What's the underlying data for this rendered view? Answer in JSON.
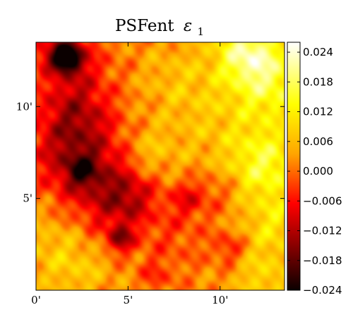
{
  "chart_data": {
    "type": "heatmap",
    "title": "PSFent",
    "title_symbol": "ε",
    "title_subscript": "1",
    "colormap": "hot",
    "colormap_stops": [
      "#0b0000",
      "#ff0000",
      "#ffa500",
      "#ffff00",
      "#ffffff"
    ],
    "xlim": [
      0,
      13.5
    ],
    "ylim": [
      0,
      13.5
    ],
    "x_ticks": [
      {
        "value": 0,
        "label": "0'"
      },
      {
        "value": 5,
        "label": "5'"
      },
      {
        "value": 10,
        "label": "10'"
      }
    ],
    "y_ticks": [
      {
        "value": 5,
        "label": "5'"
      },
      {
        "value": 10,
        "label": "10'"
      }
    ],
    "colorbar": {
      "min": -0.024,
      "max": 0.026,
      "ticks": [
        {
          "value": 0.024,
          "label": "0.024"
        },
        {
          "value": 0.018,
          "label": "0.018"
        },
        {
          "value": 0.012,
          "label": "0.012"
        },
        {
          "value": 0.006,
          "label": "0.006"
        },
        {
          "value": 0.0,
          "label": "0.000"
        },
        {
          "value": -0.006,
          "label": "−0.006"
        },
        {
          "value": -0.012,
          "label": "−0.012"
        },
        {
          "value": -0.018,
          "label": "−0.018"
        },
        {
          "value": -0.024,
          "label": "−0.024"
        }
      ]
    },
    "base_value": 0.002,
    "features": [
      {
        "x": 1.7,
        "y": 12.7,
        "sigma": 0.55,
        "value": -0.03
      },
      {
        "x": 2.0,
        "y": 12.2,
        "sigma": 1.5,
        "value": -0.008
      },
      {
        "x": 2.2,
        "y": 9.5,
        "sigma": 1.4,
        "value": -0.01
      },
      {
        "x": 1.5,
        "y": 7.5,
        "sigma": 1.6,
        "value": -0.008
      },
      {
        "x": 2.5,
        "y": 6.5,
        "sigma": 0.6,
        "value": -0.012
      },
      {
        "x": 3.5,
        "y": 6.3,
        "sigma": 1.8,
        "value": -0.008
      },
      {
        "x": 5.0,
        "y": 5.0,
        "sigma": 1.0,
        "value": -0.008
      },
      {
        "x": 4.6,
        "y": 2.8,
        "sigma": 0.5,
        "value": -0.014
      },
      {
        "x": 3.8,
        "y": 4.5,
        "sigma": 1.6,
        "value": -0.005
      },
      {
        "x": 8.3,
        "y": 5.0,
        "sigma": 0.7,
        "value": -0.008
      },
      {
        "x": 7.5,
        "y": 3.0,
        "sigma": 1.5,
        "value": -0.004
      },
      {
        "x": 10.5,
        "y": 2.3,
        "sigma": 0.6,
        "value": -0.007
      },
      {
        "x": 10.0,
        "y": 5.5,
        "sigma": 0.8,
        "value": -0.004
      },
      {
        "x": 6.5,
        "y": 0.8,
        "sigma": 0.6,
        "value": -0.005
      },
      {
        "x": 1.0,
        "y": 2.5,
        "sigma": 1.5,
        "value": 0.005
      },
      {
        "x": 2.5,
        "y": 1.0,
        "sigma": 1.2,
        "value": 0.004
      },
      {
        "x": 11.5,
        "y": 13.0,
        "sigma": 1.2,
        "value": 0.016
      },
      {
        "x": 12.8,
        "y": 11.2,
        "sigma": 1.5,
        "value": 0.012
      },
      {
        "x": 12.5,
        "y": 6.8,
        "sigma": 1.4,
        "value": 0.013
      },
      {
        "x": 13.0,
        "y": 3.5,
        "sigma": 1.2,
        "value": 0.008
      },
      {
        "x": 12.3,
        "y": 0.7,
        "sigma": 1.0,
        "value": 0.007
      },
      {
        "x": 9.8,
        "y": 9.0,
        "sigma": 1.8,
        "value": 0.004
      },
      {
        "x": 6.2,
        "y": 7.5,
        "sigma": 1.0,
        "value": 0.006
      },
      {
        "x": 7.8,
        "y": 11.5,
        "sigma": 1.5,
        "value": 0.004
      },
      {
        "x": 0.5,
        "y": 13.0,
        "sigma": 0.6,
        "value": -0.006
      }
    ]
  }
}
